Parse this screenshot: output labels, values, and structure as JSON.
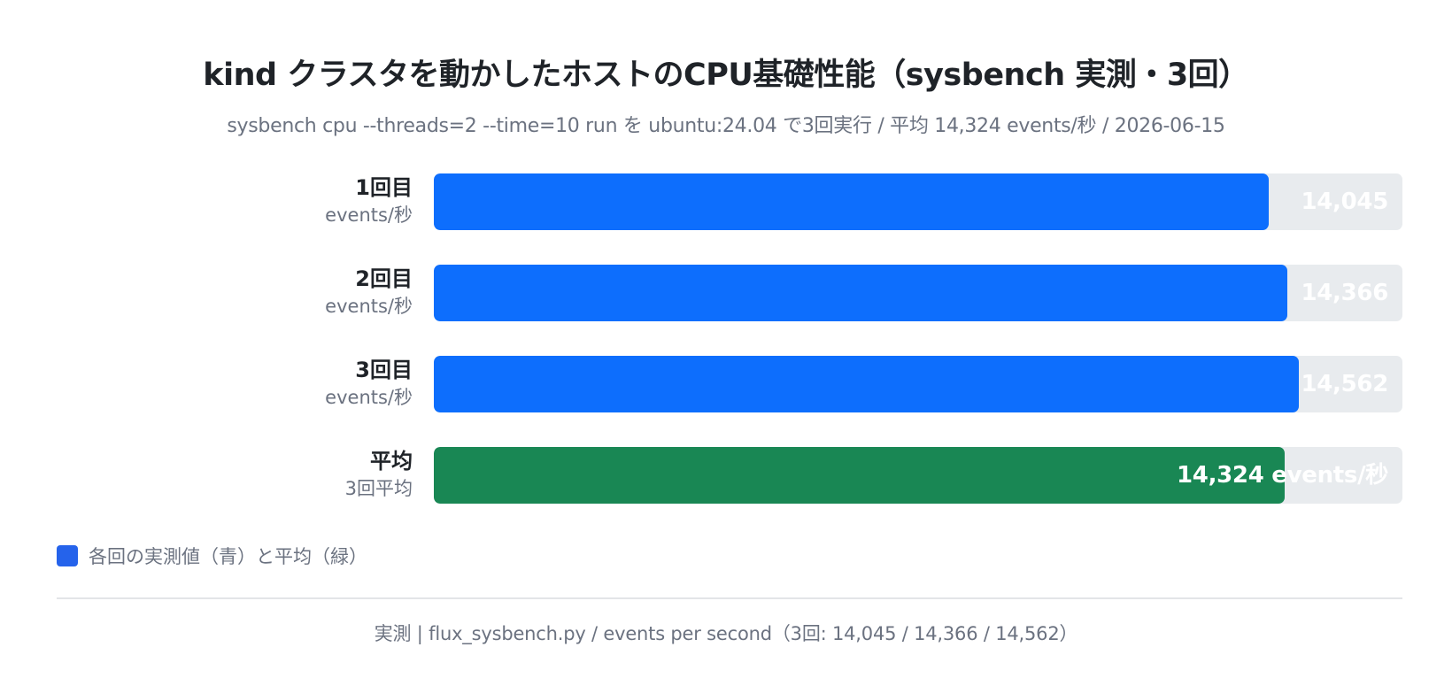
{
  "chart_data": {
    "type": "bar",
    "orientation": "horizontal",
    "title": "kind クラスタを動かしたホストのCPU基礎性能（sysbench 実測・3回）",
    "subtitle": "sysbench cpu --threads=2 --time=10 run を ubuntu:24.04 で3回実行 / 平均 14,324 events/秒 / 2026-06-15",
    "categories": [
      "1回目",
      "2回目",
      "3回目",
      "平均"
    ],
    "category_sublabels": [
      "events/秒",
      "events/秒",
      "events/秒",
      "3回平均"
    ],
    "values": [
      14045,
      14366,
      14562,
      14324
    ],
    "value_labels": [
      "14,045",
      "14,366",
      "14,562",
      "14,324 events/秒"
    ],
    "bar_colors": [
      "#0d6efd",
      "#0d6efd",
      "#0d6efd",
      "#198754"
    ],
    "xlim": [
      0,
      16300
    ],
    "grid": false,
    "legend": {
      "placement": "bottom-left",
      "label": "各回の実測値（青）と平均（緑）",
      "color": "#2563eb"
    },
    "footer": "実測 | flux_sysbench.py / events per second（3回: 14,045 / 14,366 / 14,562）"
  },
  "colors": {
    "track": "#e8ebee",
    "title": "#1f2328",
    "muted": "#6b7280"
  }
}
